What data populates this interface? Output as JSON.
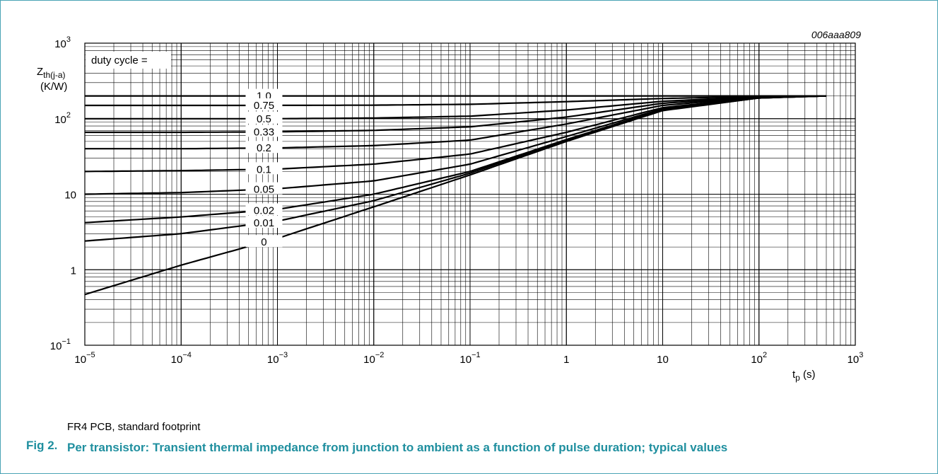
{
  "chart_data": {
    "type": "line",
    "code": "006aaa809",
    "ylabel_main": "Z",
    "ylabel_sub": "th(j-a)",
    "ylabel_unit": "(K/W)",
    "xlabel_main": "t",
    "xlabel_sub": "p",
    "xlabel_unit": " (s)",
    "x_scale": "log",
    "y_scale": "log",
    "xlim": [
      1e-05,
      1000
    ],
    "ylim": [
      0.1,
      1000
    ],
    "grid": true,
    "legend_title": "duty cycle =",
    "x_ticks": [
      {
        "base": "10",
        "exp": "−5"
      },
      {
        "base": "10",
        "exp": "−4"
      },
      {
        "base": "10",
        "exp": "−3"
      },
      {
        "base": "10",
        "exp": "−2"
      },
      {
        "base": "10",
        "exp": "−1"
      },
      {
        "base": "1",
        "exp": ""
      },
      {
        "base": "10",
        "exp": ""
      },
      {
        "base": "10",
        "exp": "2"
      },
      {
        "base": "10",
        "exp": "3"
      }
    ],
    "y_ticks": [
      {
        "base": "10",
        "exp": "−1"
      },
      {
        "base": "1",
        "exp": ""
      },
      {
        "base": "10",
        "exp": ""
      },
      {
        "base": "10",
        "exp": "2"
      },
      {
        "base": "10",
        "exp": "3"
      }
    ],
    "series": [
      {
        "name": "1.0",
        "x": [
          1e-05,
          0.1,
          1,
          10,
          100,
          500
        ],
        "y": [
          200,
          200,
          200,
          200,
          200,
          200
        ]
      },
      {
        "name": "0.75",
        "x": [
          1e-05,
          0.0001,
          0.001,
          0.01,
          0.1,
          1,
          10,
          100,
          500
        ],
        "y": [
          150,
          150,
          150,
          151,
          155,
          168,
          185,
          197,
          200
        ]
      },
      {
        "name": "0.5",
        "x": [
          1e-05,
          0.0001,
          0.001,
          0.01,
          0.1,
          1,
          10,
          100,
          500
        ],
        "y": [
          100,
          100,
          100,
          102,
          108,
          130,
          170,
          195,
          200
        ]
      },
      {
        "name": "0.33",
        "x": [
          1e-05,
          0.0001,
          0.001,
          0.01,
          0.1,
          1,
          10,
          100,
          500
        ],
        "y": [
          66,
          66,
          67,
          70,
          78,
          105,
          160,
          194,
          200
        ]
      },
      {
        "name": "0.2",
        "x": [
          1e-05,
          0.0001,
          0.001,
          0.01,
          0.1,
          1,
          10,
          100,
          500
        ],
        "y": [
          40,
          40,
          41,
          44,
          52,
          85,
          150,
          192,
          200
        ]
      },
      {
        "name": "0.1",
        "x": [
          1e-05,
          0.0001,
          0.001,
          0.01,
          0.1,
          1,
          10,
          100,
          500
        ],
        "y": [
          20,
          20.5,
          21.5,
          25,
          34,
          66,
          140,
          190,
          200
        ]
      },
      {
        "name": "0.05",
        "x": [
          1e-05,
          0.0001,
          0.001,
          0.01,
          0.1,
          1,
          10,
          100,
          500
        ],
        "y": [
          10,
          10.5,
          11.8,
          15,
          25,
          58,
          135,
          189,
          200
        ]
      },
      {
        "name": "0.02",
        "x": [
          1e-05,
          0.0001,
          0.001,
          0.01,
          0.1,
          1,
          10,
          100,
          500
        ],
        "y": [
          4.2,
          5,
          6.3,
          10,
          20,
          53,
          132,
          188,
          200
        ]
      },
      {
        "name": "0.01",
        "x": [
          1e-05,
          0.0001,
          0.001,
          0.01,
          0.1,
          1,
          10,
          100,
          500
        ],
        "y": [
          2.4,
          3,
          4.4,
          8.2,
          19,
          52,
          130,
          188,
          200
        ]
      },
      {
        "name": "0",
        "x": [
          1e-05,
          0.0001,
          0.001,
          0.01,
          0.1,
          1,
          10,
          100,
          500
        ],
        "y": [
          0.47,
          1.15,
          2.6,
          6.8,
          18,
          50,
          128,
          188,
          200
        ]
      }
    ]
  },
  "footnote": "FR4 PCB, standard footprint",
  "figure": {
    "number": "Fig 2.",
    "title": "Per transistor: Transient thermal impedance from junction to ambient as a function of pulse duration; typical values"
  },
  "colors": {
    "border": "#4aa3b5",
    "caption": "#1f8f9f",
    "grid": "#000000",
    "curve": "#000000"
  }
}
